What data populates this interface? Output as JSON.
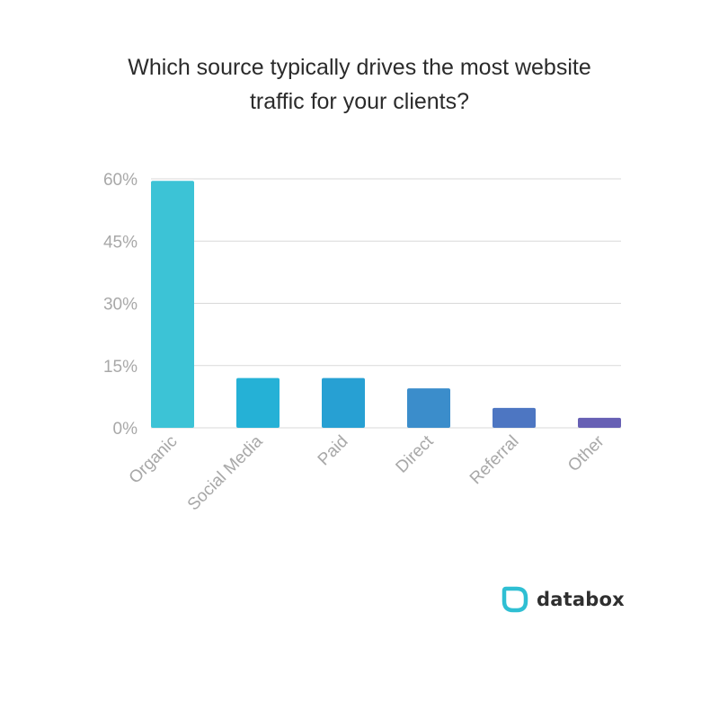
{
  "chart_data": {
    "type": "bar",
    "title_lines": [
      "Which source typically drives the most website",
      "traffic for your clients?"
    ],
    "categories": [
      "Organic",
      "Social Media",
      "Paid",
      "Direct",
      "Referral",
      "Other"
    ],
    "values": [
      59.5,
      12,
      12,
      9.5,
      4.8,
      2.4
    ],
    "colors": [
      "#3cc3d6",
      "#25b1d6",
      "#27a0d3",
      "#3b8dcb",
      "#4d76c2",
      "#6760b4"
    ],
    "y_ticks": [
      0,
      15,
      30,
      45,
      60
    ],
    "y_tick_labels": [
      "0%",
      "15%",
      "30%",
      "45%",
      "60%"
    ],
    "ylim": [
      0,
      60
    ],
    "grid": true,
    "gridline_color": "#d9d9d9"
  },
  "brand": {
    "name": "databox",
    "accent": "#2fbfd3"
  }
}
